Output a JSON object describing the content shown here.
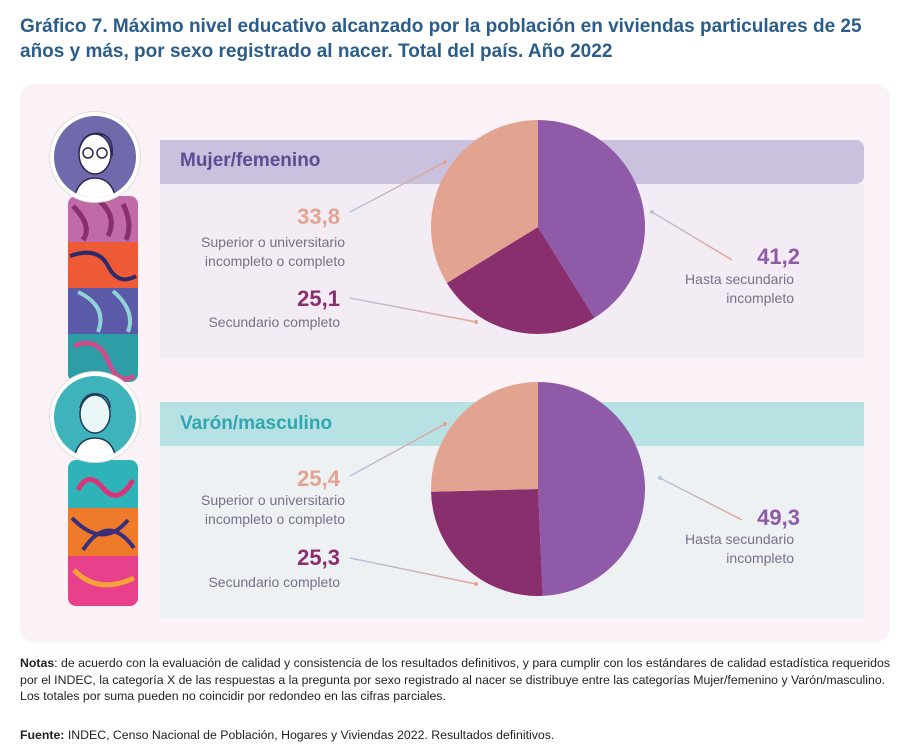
{
  "title": "Gráfico 7. Máximo nivel educativo alcanzado por la población en viviendas particulares de 25 años y más, por sexo registrado al nacer. Total del país. Año 2022",
  "colors": {
    "hasta_secundario": "#8f5aa8",
    "secundario_completo": "#8a2f6e",
    "superior": "#e3a391"
  },
  "chart_data": [
    {
      "type": "pie",
      "title": "Mujer/femenino",
      "series": [
        {
          "name": "Hasta secundario incompleto",
          "value": 41.2,
          "label": "41,2",
          "color": "#8f5aa8"
        },
        {
          "name": "Secundario completo",
          "value": 25.1,
          "label": "25,1",
          "color": "#8a2f6e"
        },
        {
          "name": "Superior o universitario incompleto o completo",
          "value": 33.8,
          "label": "33,8",
          "color": "#e3a391"
        }
      ]
    },
    {
      "type": "pie",
      "title": "Varón/masculino",
      "series": [
        {
          "name": "Hasta secundario incompleto",
          "value": 49.3,
          "label": "49,3",
          "color": "#8f5aa8"
        },
        {
          "name": "Secundario completo",
          "value": 25.3,
          "label": "25,3",
          "color": "#8a2f6e"
        },
        {
          "name": "Superior o universitario incompleto o completo",
          "value": 25.4,
          "label": "25,4",
          "color": "#e3a391"
        }
      ]
    }
  ],
  "labels": {
    "superior_line1": "Superior o universitario",
    "superior_line2": "incompleto o completo",
    "secundario": "Secundario completo",
    "hasta_line1": "Hasta secundario",
    "hasta_line2": "incompleto"
  },
  "notes": {
    "notes_label": "Notas",
    "notes_text": ": de acuerdo con la evaluación de calidad y consistencia de los resultados definitivos, y para cumplir con los estándares de calidad estadística requeridos por el INDEC, la categoría X de las respuestas a la pregunta por sexo registrado al nacer se distribuye entre las categorías Mujer/femenino y Varón/masculino.",
    "notes_text2": "Los totales por suma pueden no coincidir por redondeo en las cifras parciales.",
    "source_label": "Fuente:",
    "source_text": " INDEC, Censo Nacional de Población, Hogares y Viviendas 2022. Resultados definitivos."
  }
}
